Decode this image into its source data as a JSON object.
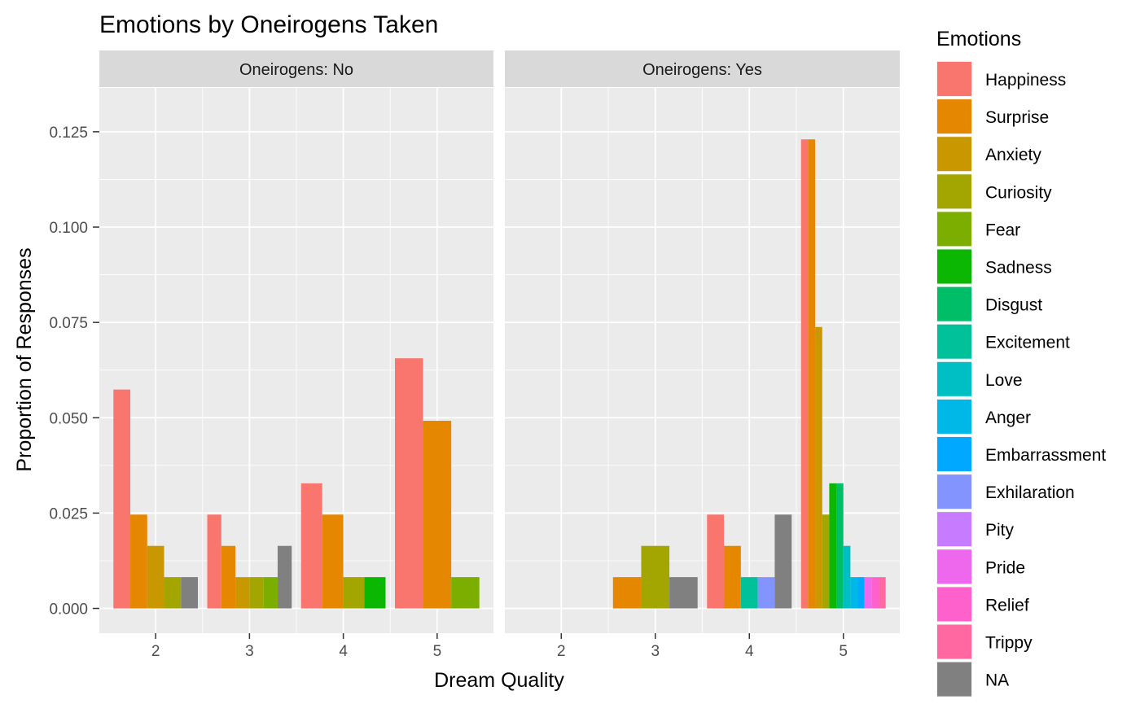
{
  "chart_data": {
    "type": "bar",
    "title": "Emotions by Oneirogens Taken",
    "xlabel": "Dream Quality",
    "ylabel": "Proportion of Responses",
    "ylim": [
      -0.0065,
      0.1365
    ],
    "y_ticks": [
      "0.000",
      "0.025",
      "0.050",
      "0.075",
      "0.100",
      "0.125"
    ],
    "y_tick_values": [
      0,
      0.025,
      0.05,
      0.075,
      0.1,
      0.125
    ],
    "x_categories": [
      "2",
      "3",
      "4",
      "5"
    ],
    "grid": true,
    "legend_title": "Emotions",
    "legend_placement": "right",
    "legend": [
      {
        "name": "Happiness",
        "color": "#F8766D"
      },
      {
        "name": "Surprise",
        "color": "#E58700"
      },
      {
        "name": "Anxiety",
        "color": "#C99800"
      },
      {
        "name": "Curiosity",
        "color": "#A3A500"
      },
      {
        "name": "Fear",
        "color": "#7CAE00"
      },
      {
        "name": "Sadness",
        "color": "#0BB702"
      },
      {
        "name": "Disgust",
        "color": "#00BE67"
      },
      {
        "name": "Excitement",
        "color": "#00C19A"
      },
      {
        "name": "Love",
        "color": "#00BFC4"
      },
      {
        "name": "Anger",
        "color": "#00B8E7"
      },
      {
        "name": "Embarrassment",
        "color": "#00A9FF"
      },
      {
        "name": "Exhilaration",
        "color": "#8494FF"
      },
      {
        "name": "Pity",
        "color": "#C77CFF"
      },
      {
        "name": "Pride",
        "color": "#ED68ED"
      },
      {
        "name": "Relief",
        "color": "#FF61CC"
      },
      {
        "name": "Trippy",
        "color": "#FF68A1"
      },
      {
        "name": "NA",
        "color": "#808080"
      }
    ],
    "facets": [
      {
        "label": "Oneirogens: No",
        "groups": [
          {
            "x": "2",
            "bars": [
              {
                "emotion": "Happiness",
                "value": 0.0574
              },
              {
                "emotion": "Surprise",
                "value": 0.0246
              },
              {
                "emotion": "Anxiety",
                "value": 0.0164
              },
              {
                "emotion": "Curiosity",
                "value": 0.0082
              },
              {
                "emotion": "NA",
                "value": 0.0082
              }
            ]
          },
          {
            "x": "3",
            "bars": [
              {
                "emotion": "Happiness",
                "value": 0.0246
              },
              {
                "emotion": "Surprise",
                "value": 0.0164
              },
              {
                "emotion": "Anxiety",
                "value": 0.0082
              },
              {
                "emotion": "Curiosity",
                "value": 0.0082
              },
              {
                "emotion": "Fear",
                "value": 0.0082
              },
              {
                "emotion": "NA",
                "value": 0.0164
              }
            ]
          },
          {
            "x": "4",
            "bars": [
              {
                "emotion": "Happiness",
                "value": 0.0328
              },
              {
                "emotion": "Surprise",
                "value": 0.0246
              },
              {
                "emotion": "Curiosity",
                "value": 0.0082
              },
              {
                "emotion": "Sadness",
                "value": 0.0082
              }
            ]
          },
          {
            "x": "5",
            "bars": [
              {
                "emotion": "Happiness",
                "value": 0.0656
              },
              {
                "emotion": "Surprise",
                "value": 0.0492
              },
              {
                "emotion": "Fear",
                "value": 0.0082
              }
            ]
          }
        ]
      },
      {
        "label": "Oneirogens: Yes",
        "groups": [
          {
            "x": "3",
            "bars": [
              {
                "emotion": "Surprise",
                "value": 0.0082
              },
              {
                "emotion": "Curiosity",
                "value": 0.0164
              },
              {
                "emotion": "NA",
                "value": 0.0082
              }
            ]
          },
          {
            "x": "4",
            "bars": [
              {
                "emotion": "Happiness",
                "value": 0.0246
              },
              {
                "emotion": "Surprise",
                "value": 0.0164
              },
              {
                "emotion": "Excitement",
                "value": 0.0082
              },
              {
                "emotion": "Exhilaration",
                "value": 0.0082
              },
              {
                "emotion": "NA",
                "value": 0.0246
              }
            ]
          },
          {
            "x": "5",
            "bars": [
              {
                "emotion": "Happiness",
                "value": 0.123
              },
              {
                "emotion": "Surprise",
                "value": 0.123
              },
              {
                "emotion": "Anxiety",
                "value": 0.0738
              },
              {
                "emotion": "Curiosity",
                "value": 0.0246
              },
              {
                "emotion": "Sadness",
                "value": 0.0328
              },
              {
                "emotion": "Disgust",
                "value": 0.0328
              },
              {
                "emotion": "Love",
                "value": 0.0164
              },
              {
                "emotion": "Anger",
                "value": 0.0082
              },
              {
                "emotion": "Embarrassment",
                "value": 0.0082
              },
              {
                "emotion": "Pride",
                "value": 0.0082
              },
              {
                "emotion": "Relief",
                "value": 0.0082
              },
              {
                "emotion": "Trippy",
                "value": 0.0082
              }
            ]
          }
        ]
      }
    ]
  }
}
